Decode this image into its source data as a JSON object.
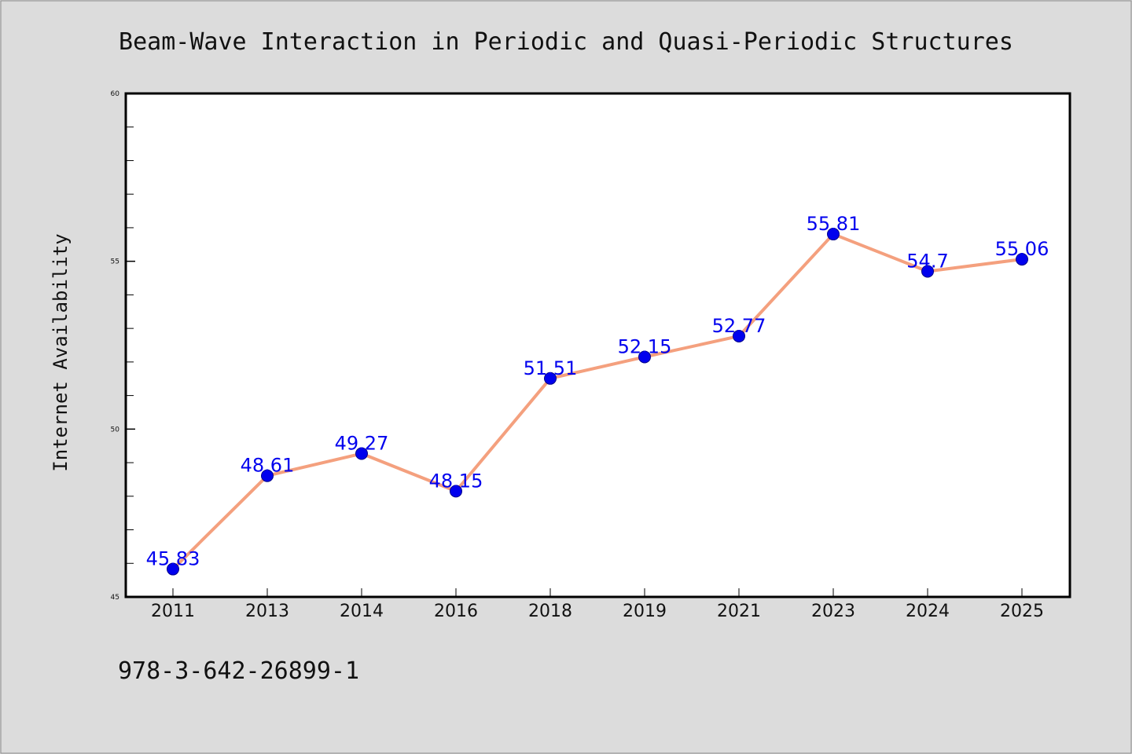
{
  "chart_data": {
    "type": "line",
    "title": "Beam-Wave Interaction in Periodic and Quasi-Periodic Structures",
    "xlabel": "",
    "ylabel": "Internet Availability",
    "categories": [
      "2011",
      "2013",
      "2014",
      "2016",
      "2018",
      "2019",
      "2021",
      "2023",
      "2024",
      "2025"
    ],
    "series": [
      {
        "values": [
          45.83,
          48.61,
          49.27,
          48.15,
          51.51,
          52.15,
          52.77,
          55.81,
          54.7,
          55.06
        ],
        "data_labels": [
          "45.83",
          "48.61",
          "49.27",
          "48.15",
          "51.51",
          "52.15",
          "52.77",
          "55.81",
          "54.7",
          "55.06"
        ]
      }
    ],
    "ylim": [
      45,
      60
    ],
    "yticks_major": [
      45,
      50,
      55,
      60
    ],
    "yticks_major_labels": [
      "45",
      "50",
      "55",
      "60"
    ],
    "yticks_minor": [
      46,
      47,
      48,
      49,
      51,
      52,
      53,
      54,
      56,
      57,
      58,
      59
    ],
    "grid": false,
    "legend": "none",
    "line_color": "#f4a07e",
    "marker_color": "#0000ee",
    "label_color": "#0000ee"
  },
  "footnote": "978-3-642-26899-1"
}
